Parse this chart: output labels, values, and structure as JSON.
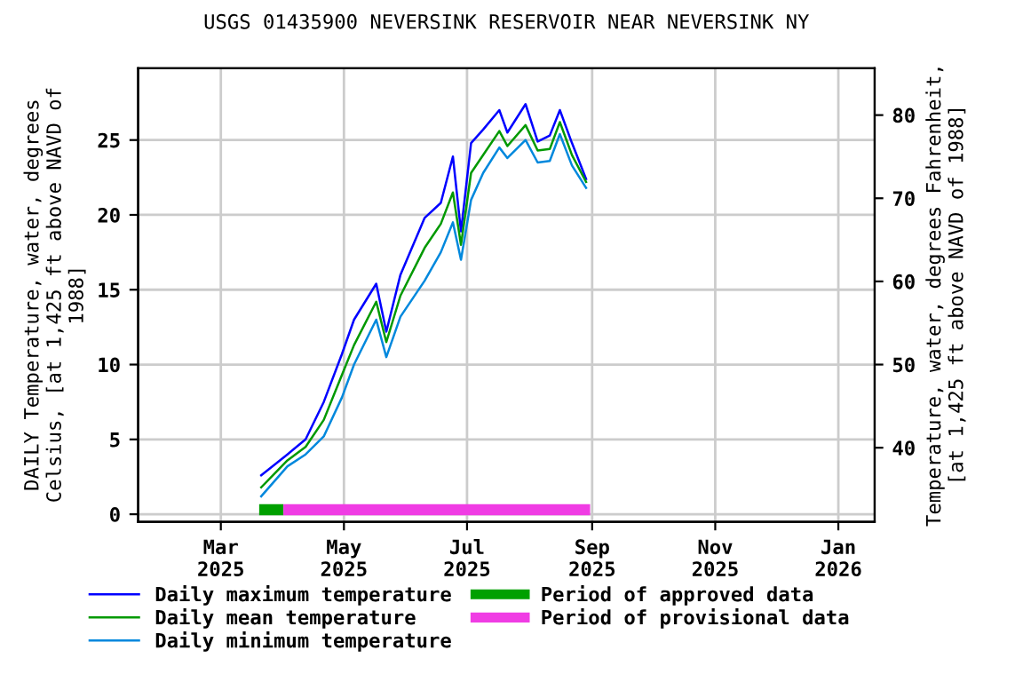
{
  "chart_data": {
    "type": "line",
    "title": "USGS 01435900 NEVERSINK RESERVOIR NEAR NEVERSINK NY",
    "ylabel": "DAILY Temperature, water, degrees\nCelsius, [at 1,425 ft above NAVD of\n1988]",
    "y2label": "Temperature, water, degrees Fahrenheit,\n[at 1,425 ft above NAVD of 1988]",
    "x": [
      "2025-03-21",
      "2025-04-03",
      "2025-04-12",
      "2025-04-21",
      "2025-04-30",
      "2025-05-06",
      "2025-05-17",
      "2025-05-22",
      "2025-05-29",
      "2025-06-10",
      "2025-06-18",
      "2025-06-24",
      "2025-06-28",
      "2025-07-03",
      "2025-07-09",
      "2025-07-17",
      "2025-07-21",
      "2025-07-30",
      "2025-08-05",
      "2025-08-11",
      "2025-08-16",
      "2025-08-22",
      "2025-08-29"
    ],
    "series": [
      {
        "name": "Daily maximum temperature",
        "color": "#0000ff",
        "values": [
          2.6,
          4.0,
          5.0,
          7.5,
          10.7,
          13.0,
          15.4,
          12.2,
          16.0,
          19.8,
          20.8,
          23.9,
          18.9,
          24.8,
          25.7,
          27.0,
          25.5,
          27.4,
          24.9,
          25.3,
          27.0,
          24.8,
          22.4
        ]
      },
      {
        "name": "Daily mean temperature",
        "color": "#009900",
        "values": [
          1.8,
          3.6,
          4.5,
          6.3,
          9.3,
          11.3,
          14.2,
          11.5,
          14.6,
          17.8,
          19.4,
          21.5,
          18.0,
          22.8,
          24.0,
          25.6,
          24.6,
          26.0,
          24.3,
          24.4,
          26.2,
          24.0,
          22.2
        ]
      },
      {
        "name": "Daily minimum temperature",
        "color": "#0088dd",
        "values": [
          1.2,
          3.2,
          4.0,
          5.2,
          7.8,
          10.0,
          13.0,
          10.5,
          13.2,
          15.6,
          17.5,
          19.5,
          17.0,
          21.0,
          22.8,
          24.5,
          23.8,
          25.0,
          23.5,
          23.6,
          25.4,
          23.3,
          21.8
        ]
      },
      {
        "name": "Period of approved data",
        "color": "#00a000",
        "type": "step",
        "x": [
          "2025-03-20",
          "2025-04-01"
        ],
        "values": [
          0.3,
          0.3
        ]
      },
      {
        "name": "Period of provisional data",
        "color": "#f03ce4",
        "type": "step",
        "x": [
          "2025-04-01",
          "2025-08-31"
        ],
        "values": [
          0.3,
          0.3
        ]
      }
    ],
    "xlim": [
      "2025-01-19",
      "2026-01-19"
    ],
    "xticks": [
      {
        "value": "2025-03-01",
        "label": "Mar\n2025"
      },
      {
        "value": "2025-05-01",
        "label": "May\n2025"
      },
      {
        "value": "2025-07-01",
        "label": "Jul\n2025"
      },
      {
        "value": "2025-09-01",
        "label": "Sep\n2025"
      },
      {
        "value": "2025-11-01",
        "label": "Nov\n2025"
      },
      {
        "value": "2026-01-01",
        "label": "Jan\n2026"
      }
    ],
    "ylim": [
      -0.5,
      29.8
    ],
    "yticks": [
      0,
      5,
      10,
      15,
      20,
      25
    ],
    "y2lim": [
      31.1,
      85.64
    ],
    "y2ticks": [
      40,
      50,
      60,
      70,
      80
    ],
    "grid": true,
    "legend": "bottom",
    "line_style": "solid",
    "marker": "none"
  }
}
